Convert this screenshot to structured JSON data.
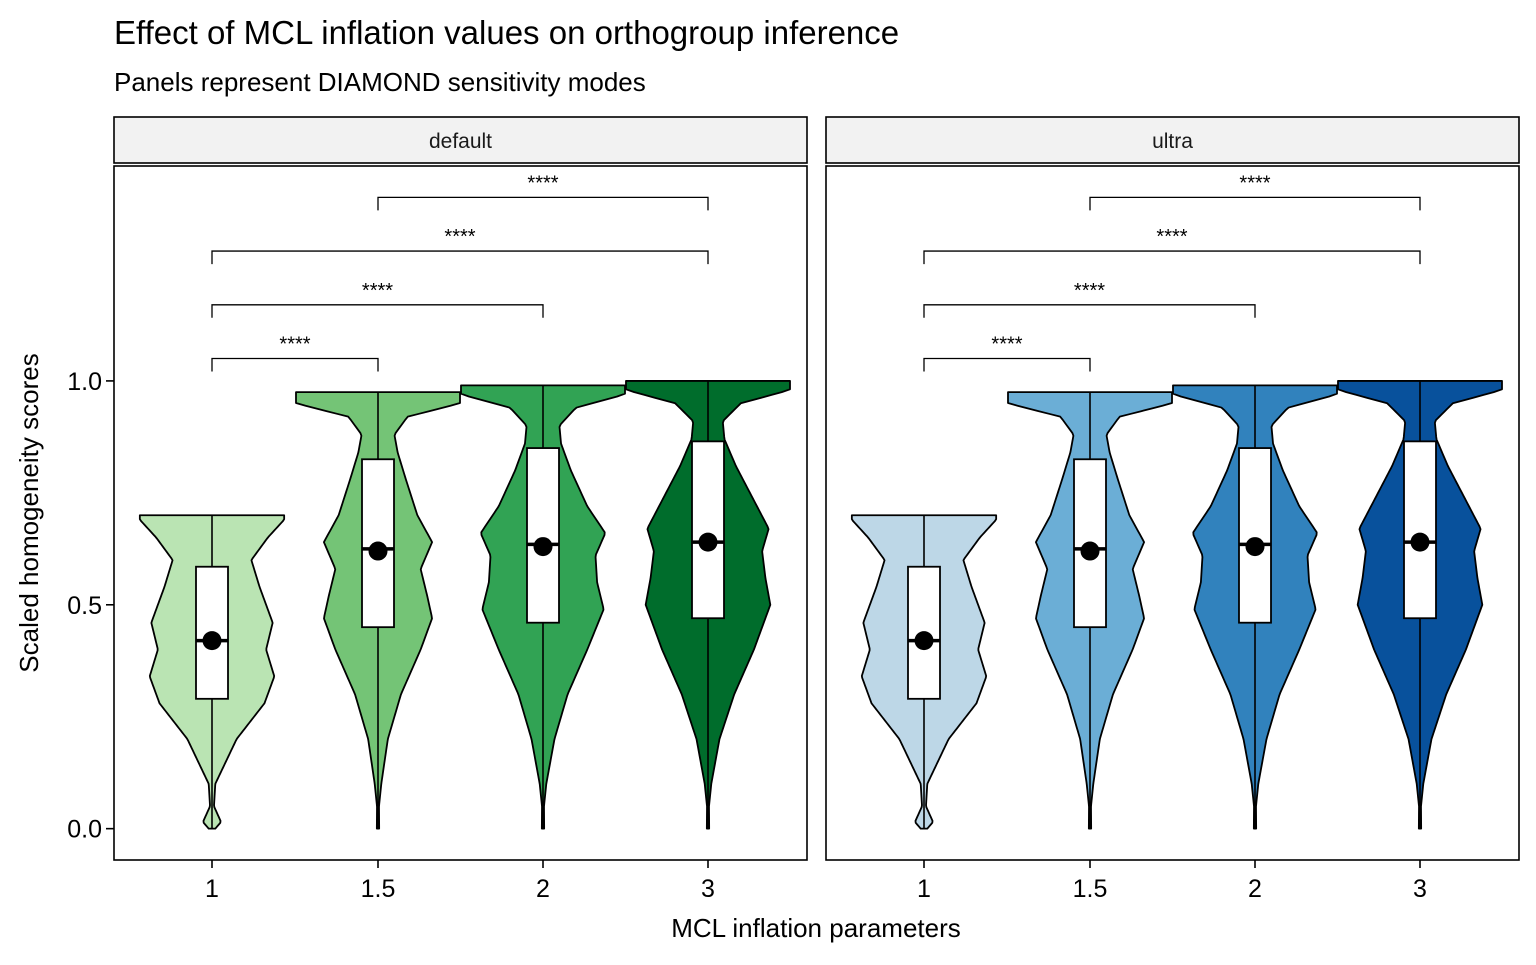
{
  "title": "Effect of MCL inflation values on orthogroup inference",
  "subtitle": "Panels represent DIAMOND sensitivity modes",
  "chart_data": {
    "type": "violin",
    "title": "Effect of MCL inflation values on orthogroup inference",
    "subtitle": "Panels represent DIAMOND sensitivity modes",
    "xlabel": "MCL inflation parameters",
    "ylabel": "Scaled homogeneity scores",
    "categories": [
      "1",
      "1.5",
      "2",
      "3"
    ],
    "y_ticks": [
      "0.0",
      "0.5",
      "1.0"
    ],
    "ylim": [
      -0.07,
      1.48
    ],
    "grid": false,
    "legend": "none",
    "violin_profiles": [
      {
        "category": "1",
        "min": 0.0,
        "max": 0.7,
        "knots": [
          [
            0.0,
            0.02
          ],
          [
            0.015,
            0.055
          ],
          [
            0.05,
            0.012
          ],
          [
            0.1,
            0.02
          ],
          [
            0.2,
            0.15
          ],
          [
            0.28,
            0.32
          ],
          [
            0.34,
            0.38
          ],
          [
            0.4,
            0.33
          ],
          [
            0.46,
            0.37
          ],
          [
            0.54,
            0.29
          ],
          [
            0.6,
            0.24
          ],
          [
            0.65,
            0.34
          ],
          [
            0.69,
            0.44
          ],
          [
            0.7,
            0.44
          ]
        ]
      },
      {
        "category": "1.5",
        "min": 0.0,
        "max": 0.975,
        "knots": [
          [
            0.0,
            0.007
          ],
          [
            0.05,
            0.006
          ],
          [
            0.1,
            0.02
          ],
          [
            0.2,
            0.06
          ],
          [
            0.3,
            0.14
          ],
          [
            0.4,
            0.26
          ],
          [
            0.47,
            0.33
          ],
          [
            0.52,
            0.3
          ],
          [
            0.58,
            0.26
          ],
          [
            0.64,
            0.33
          ],
          [
            0.7,
            0.24
          ],
          [
            0.78,
            0.17
          ],
          [
            0.84,
            0.12
          ],
          [
            0.88,
            0.1
          ],
          [
            0.92,
            0.18
          ],
          [
            0.95,
            0.5
          ],
          [
            0.97,
            0.5
          ],
          [
            0.975,
            0.5
          ]
        ]
      },
      {
        "category": "2",
        "min": 0.0,
        "max": 0.99,
        "knots": [
          [
            0.0,
            0.007
          ],
          [
            0.05,
            0.006
          ],
          [
            0.1,
            0.02
          ],
          [
            0.2,
            0.07
          ],
          [
            0.3,
            0.15
          ],
          [
            0.4,
            0.27
          ],
          [
            0.49,
            0.37
          ],
          [
            0.55,
            0.33
          ],
          [
            0.61,
            0.32
          ],
          [
            0.66,
            0.38
          ],
          [
            0.72,
            0.27
          ],
          [
            0.8,
            0.17
          ],
          [
            0.86,
            0.11
          ],
          [
            0.9,
            0.1
          ],
          [
            0.94,
            0.2
          ],
          [
            0.97,
            0.5
          ],
          [
            0.99,
            0.5
          ]
        ]
      },
      {
        "category": "3",
        "min": 0.0,
        "max": 1.0,
        "knots": [
          [
            0.0,
            0.007
          ],
          [
            0.05,
            0.006
          ],
          [
            0.1,
            0.02
          ],
          [
            0.2,
            0.07
          ],
          [
            0.3,
            0.16
          ],
          [
            0.4,
            0.28
          ],
          [
            0.5,
            0.38
          ],
          [
            0.56,
            0.35
          ],
          [
            0.62,
            0.33
          ],
          [
            0.67,
            0.37
          ],
          [
            0.74,
            0.27
          ],
          [
            0.81,
            0.17
          ],
          [
            0.87,
            0.1
          ],
          [
            0.91,
            0.09
          ],
          [
            0.95,
            0.2
          ],
          [
            0.98,
            0.5
          ],
          [
            1.0,
            0.5
          ]
        ]
      }
    ],
    "panels": [
      {
        "name": "default",
        "fills": [
          "#bae4b3",
          "#74c476",
          "#31a354",
          "#006d2c"
        ],
        "boxes": [
          {
            "category": "1",
            "q1": 0.29,
            "median": 0.42,
            "q3": 0.585,
            "whisker_low": 0.0,
            "whisker_high": 0.7,
            "mean": 0.42
          },
          {
            "category": "1.5",
            "q1": 0.45,
            "median": 0.625,
            "q3": 0.825,
            "whisker_low": 0.0,
            "whisker_high": 0.975,
            "mean": 0.62
          },
          {
            "category": "2",
            "q1": 0.46,
            "median": 0.635,
            "q3": 0.85,
            "whisker_low": 0.0,
            "whisker_high": 0.99,
            "mean": 0.63
          },
          {
            "category": "3",
            "q1": 0.47,
            "median": 0.64,
            "q3": 0.865,
            "whisker_low": 0.0,
            "whisker_high": 1.0,
            "mean": 0.64
          }
        ],
        "comparisons": [
          {
            "from": "1",
            "to": "1.5",
            "y": 1.05,
            "label": "****"
          },
          {
            "from": "1",
            "to": "2",
            "y": 1.17,
            "label": "****"
          },
          {
            "from": "1",
            "to": "3",
            "y": 1.29,
            "label": "****"
          },
          {
            "from": "1.5",
            "to": "3",
            "y": 1.41,
            "label": "****"
          }
        ]
      },
      {
        "name": "ultra",
        "fills": [
          "#bdd7e7",
          "#6baed6",
          "#3182bd",
          "#08519c"
        ],
        "boxes": [
          {
            "category": "1",
            "q1": 0.29,
            "median": 0.42,
            "q3": 0.585,
            "whisker_low": 0.0,
            "whisker_high": 0.7,
            "mean": 0.42
          },
          {
            "category": "1.5",
            "q1": 0.45,
            "median": 0.625,
            "q3": 0.825,
            "whisker_low": 0.0,
            "whisker_high": 0.975,
            "mean": 0.62
          },
          {
            "category": "2",
            "q1": 0.46,
            "median": 0.635,
            "q3": 0.85,
            "whisker_low": 0.0,
            "whisker_high": 0.99,
            "mean": 0.63
          },
          {
            "category": "3",
            "q1": 0.47,
            "median": 0.64,
            "q3": 0.865,
            "whisker_low": 0.0,
            "whisker_high": 1.0,
            "mean": 0.64
          }
        ],
        "comparisons": [
          {
            "from": "1",
            "to": "1.5",
            "y": 1.05,
            "label": "****"
          },
          {
            "from": "1",
            "to": "2",
            "y": 1.17,
            "label": "****"
          },
          {
            "from": "1",
            "to": "3",
            "y": 1.29,
            "label": "****"
          },
          {
            "from": "1.5",
            "to": "3",
            "y": 1.41,
            "label": "****"
          }
        ]
      }
    ]
  }
}
